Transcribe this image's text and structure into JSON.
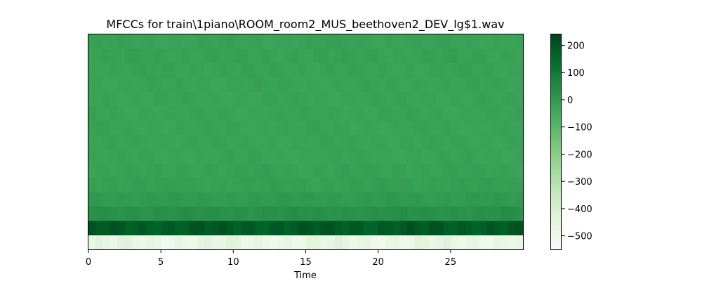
{
  "chart_data": {
    "type": "heatmap",
    "title": "MFCCs for train\\1piano\\ROOM_room2_MUS_beethoven2_DEV_lg$1.wav",
    "xlabel": "Time",
    "ylabel": "",
    "xlim": [
      0,
      30
    ],
    "x_ticks": [
      0,
      5,
      10,
      15,
      20,
      25
    ],
    "x_tick_labels": [
      "0",
      "5",
      "10",
      "15",
      "20",
      "25"
    ],
    "y_ticks_shown": false,
    "n_coefficients": 15,
    "n_frames": 60,
    "frame_duration": 0.5,
    "colormap": "Greens",
    "colormap_stops": [
      "#f7fcf5",
      "#e5f5e0",
      "#c7e9c0",
      "#a1d99b",
      "#74c476",
      "#41ab5d",
      "#238b45",
      "#006d2c",
      "#00441b"
    ],
    "vmin": -550,
    "vmax": 240,
    "colorbar": {
      "ticks": [
        200,
        100,
        0,
        -100,
        -200,
        -300,
        -400,
        -500
      ],
      "tick_labels": [
        "200",
        "100",
        "0",
        "−100",
        "−200",
        "−300",
        "−400",
        "−500"
      ]
    },
    "coefficient_levels": [
      -470,
      185,
      25,
      -5,
      -20,
      -25,
      -30,
      -30,
      -30,
      -30,
      -30,
      -30,
      -28,
      -25,
      -28
    ],
    "coefficient_variation": [
      45,
      30,
      12,
      10,
      9,
      9,
      8,
      8,
      8,
      8,
      8,
      8,
      9,
      10,
      9
    ],
    "grid": false,
    "legend": "none"
  }
}
